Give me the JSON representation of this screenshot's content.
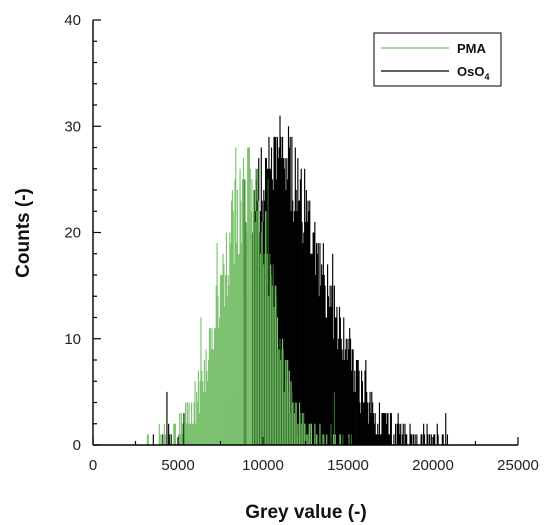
{
  "chart_data": {
    "type": "bar",
    "title": "",
    "xlabel": "Grey value (-)",
    "ylabel": "Counts (-)",
    "xlim": [
      0,
      25000
    ],
    "ylim": [
      0,
      40
    ],
    "xticks": [
      0,
      5000,
      10000,
      15000,
      20000,
      25000
    ],
    "yticks": [
      0,
      10,
      20,
      30,
      40
    ],
    "grid": false,
    "legend_position": "top-right",
    "bin_width": 50,
    "series": [
      {
        "name": "PMA",
        "color": "#7cc270",
        "shape": {
          "mean": 9300,
          "sd": 1550,
          "left_tail_sd": 1750,
          "right_tail_sd": 1250,
          "peak": 24,
          "noise": 4,
          "x_start": 3000,
          "x_end": 15500
        }
      },
      {
        "name": "OsO4",
        "color": "#000000",
        "shape": {
          "mean": 10600,
          "sd": 1400,
          "left_tail_sd": 1500,
          "right_tail_sd": 2900,
          "peak": 27,
          "noise": 4,
          "x_start": 3500,
          "x_end": 21000
        }
      }
    ],
    "overlap_color": "#2e6b25",
    "legend": {
      "entries": [
        {
          "label": "PMA",
          "color": "#7cc270"
        },
        {
          "label": "OsO",
          "subscript": "4",
          "color": "#000000"
        }
      ]
    }
  }
}
